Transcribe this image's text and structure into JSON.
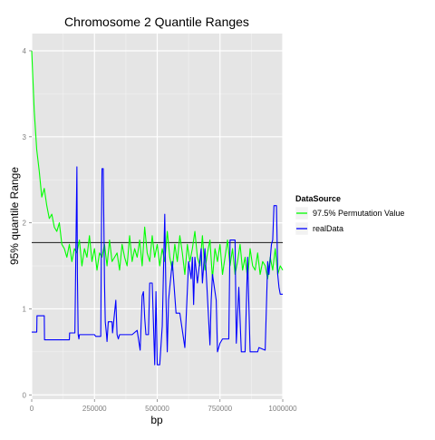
{
  "chart_data": {
    "type": "line",
    "title": "Chromosome 2 Quantile Ranges",
    "xlabel": "bp",
    "ylabel": "95% quantile Range",
    "xlim": [
      0,
      1000000
    ],
    "ylim": [
      -0.05,
      4.2
    ],
    "x_ticks": [
      0,
      250000,
      500000,
      750000,
      1000000
    ],
    "x_tick_labels": [
      "0",
      "250000",
      "500000",
      "750000",
      "1000000"
    ],
    "y_ticks": [
      0,
      1,
      2,
      3,
      4
    ],
    "y_tick_labels": [
      "0",
      "1",
      "2",
      "3",
      "4"
    ],
    "grid": true,
    "legend": {
      "title": "DataSource",
      "position": "right",
      "entries": [
        {
          "label": "97.5% Permutation Value",
          "color": "#00ff00"
        },
        {
          "label": "realData",
          "color": "#0000ff"
        }
      ]
    },
    "reference_line": {
      "y": 1.77,
      "color": "#333333"
    },
    "series": [
      {
        "name": "97.5% Permutation Value",
        "color": "#00ff00",
        "x": [
          0,
          10000,
          20000,
          30000,
          40000,
          50000,
          60000,
          70000,
          80000,
          90000,
          100000,
          110000,
          120000,
          130000,
          140000,
          150000,
          160000,
          170000,
          180000,
          190000,
          200000,
          210000,
          220000,
          230000,
          240000,
          250000,
          260000,
          270000,
          280000,
          290000,
          300000,
          310000,
          320000,
          330000,
          340000,
          350000,
          360000,
          370000,
          380000,
          390000,
          400000,
          410000,
          420000,
          430000,
          440000,
          450000,
          460000,
          470000,
          480000,
          490000,
          500000,
          510000,
          520000,
          530000,
          540000,
          550000,
          560000,
          570000,
          580000,
          590000,
          600000,
          610000,
          620000,
          630000,
          640000,
          650000,
          660000,
          670000,
          680000,
          690000,
          700000,
          710000,
          720000,
          730000,
          740000,
          750000,
          760000,
          770000,
          780000,
          790000,
          800000,
          810000,
          820000,
          830000,
          840000,
          850000,
          860000,
          870000,
          880000,
          890000,
          900000,
          910000,
          920000,
          930000,
          940000,
          950000,
          960000,
          970000,
          980000,
          990000,
          1000000
        ],
        "values": [
          4.0,
          3.3,
          2.85,
          2.6,
          2.3,
          2.4,
          2.2,
          2.05,
          2.1,
          1.95,
          1.9,
          2.0,
          1.75,
          1.7,
          1.6,
          1.75,
          1.55,
          1.7,
          1.65,
          1.8,
          1.5,
          1.7,
          1.6,
          1.85,
          1.55,
          1.7,
          1.45,
          1.65,
          1.6,
          1.75,
          1.5,
          1.8,
          1.55,
          1.6,
          1.65,
          1.45,
          1.75,
          1.6,
          1.5,
          1.85,
          1.55,
          1.7,
          1.6,
          1.8,
          1.5,
          1.95,
          1.65,
          1.55,
          1.85,
          1.6,
          1.75,
          1.5,
          1.7,
          1.55,
          1.9,
          1.6,
          1.45,
          1.75,
          1.55,
          1.85,
          1.65,
          1.4,
          1.75,
          1.55,
          1.7,
          1.9,
          1.6,
          1.5,
          1.85,
          1.45,
          1.65,
          1.8,
          1.35,
          1.7,
          1.55,
          1.75,
          1.4,
          1.6,
          1.8,
          1.5,
          1.7,
          1.4,
          1.55,
          1.75,
          1.45,
          1.6,
          1.35,
          1.7,
          1.5,
          1.45,
          1.65,
          1.4,
          1.55,
          1.5,
          1.35,
          1.6,
          1.45,
          1.7,
          1.4,
          1.5,
          1.45
        ]
      },
      {
        "name": "realData",
        "color": "#0000ff",
        "x": [
          0,
          20000,
          21000,
          50000,
          51000,
          150000,
          151000,
          172000,
          180000,
          182000,
          185000,
          188000,
          190000,
          250000,
          255000,
          275000,
          278000,
          280000,
          285000,
          290000,
          293000,
          298000,
          300000,
          305000,
          320000,
          322000,
          335000,
          340000,
          345000,
          350000,
          355000,
          400000,
          420000,
          432000,
          440000,
          445000,
          450000,
          455000,
          465000,
          470000,
          480000,
          490000,
          495000,
          500000,
          510000,
          520000,
          530000,
          535000,
          540000,
          545000,
          560000,
          575000,
          590000,
          610000,
          625000,
          635000,
          640000,
          645000,
          650000,
          660000,
          675000,
          680000,
          690000,
          710000,
          715000,
          720000,
          735000,
          740000,
          750000,
          760000,
          785000,
          790000,
          810000,
          815000,
          825000,
          835000,
          850000,
          860000,
          870000,
          900000,
          905000,
          930000,
          940000,
          945000,
          955000,
          960000,
          965000,
          975000,
          980000,
          985000,
          990000,
          1000000
        ],
        "values": [
          0.73,
          0.73,
          0.92,
          0.92,
          0.64,
          0.64,
          0.72,
          0.72,
          2.65,
          1.4,
          0.7,
          0.65,
          0.7,
          0.7,
          0.68,
          0.68,
          2.0,
          2.63,
          2.63,
          1.3,
          0.85,
          0.7,
          0.62,
          0.85,
          0.85,
          0.72,
          1.1,
          0.7,
          0.65,
          0.7,
          0.7,
          0.7,
          0.75,
          0.52,
          1.15,
          1.2,
          0.9,
          0.7,
          0.7,
          1.3,
          1.3,
          0.35,
          1.2,
          0.35,
          0.35,
          0.8,
          2.1,
          1.1,
          0.5,
          1.1,
          1.55,
          0.95,
          0.95,
          0.55,
          1.55,
          1.35,
          1.6,
          1.05,
          1.6,
          1.3,
          1.7,
          1.3,
          1.7,
          0.58,
          1.1,
          1.4,
          1.1,
          0.5,
          0.6,
          0.65,
          0.65,
          1.8,
          1.8,
          0.6,
          1.25,
          0.5,
          0.5,
          1.6,
          0.5,
          0.5,
          0.55,
          0.52,
          1.55,
          1.4,
          1.75,
          1.8,
          2.2,
          2.2,
          1.4,
          1.25,
          1.17,
          1.17
        ]
      }
    ]
  }
}
